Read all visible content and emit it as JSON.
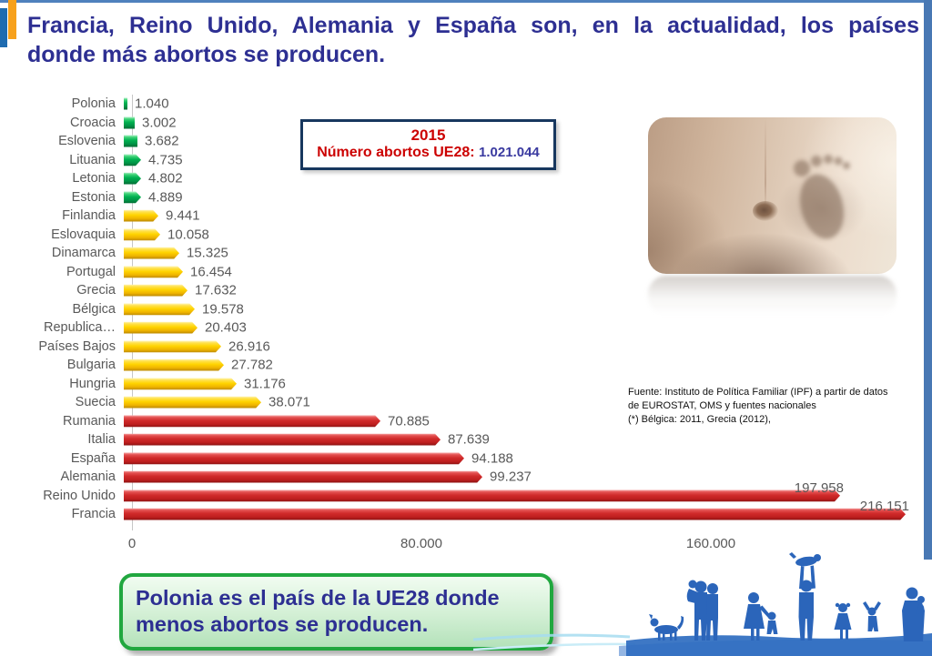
{
  "title": {
    "line1": "Francia, Reino Unido, Alemania y España son, en la actualidad, los países",
    "line2": "donde más abortos se producen."
  },
  "info_box": {
    "year": "2015",
    "label": "Número abortos UE28:",
    "value": "1.021.044"
  },
  "source_note": {
    "line1": "Fuente: Instituto de Política Familiar (IPF) a partir de datos",
    "line2": "de EUROSTAT, OMS y fuentes nacionales",
    "line3": "(*) Bélgica: 2011, Grecia (2012),"
  },
  "callout": {
    "text": "Polonia es el país de la UE28 donde menos abortos se producen."
  },
  "chart_data": {
    "type": "bar",
    "orientation": "horizontal",
    "title": "",
    "xlabel": "",
    "ylabel": "",
    "xlim": [
      0,
      220000
    ],
    "grid": false,
    "legend": false,
    "x_ticks": [
      {
        "label": "0",
        "value": 0
      },
      {
        "label": "80.000",
        "value": 80000
      },
      {
        "label": "160.000",
        "value": 160000
      }
    ],
    "bars": [
      {
        "category": "Polonia",
        "value": 1040,
        "label": "1.040",
        "color_group": "green"
      },
      {
        "category": "Croacia",
        "value": 3002,
        "label": "3.002",
        "color_group": "green"
      },
      {
        "category": "Eslovenia",
        "value": 3682,
        "label": "3.682",
        "color_group": "green"
      },
      {
        "category": "Lituania",
        "value": 4735,
        "label": "4.735",
        "color_group": "green"
      },
      {
        "category": "Letonia",
        "value": 4802,
        "label": "4.802",
        "color_group": "green"
      },
      {
        "category": "Estonia",
        "value": 4889,
        "label": "4.889",
        "color_group": "green"
      },
      {
        "category": "Finlandia",
        "value": 9441,
        "label": "9.441",
        "color_group": "yellow"
      },
      {
        "category": "Eslovaquia",
        "value": 10058,
        "label": "10.058",
        "color_group": "yellow"
      },
      {
        "category": "Dinamarca",
        "value": 15325,
        "label": "15.325",
        "color_group": "yellow"
      },
      {
        "category": "Portugal",
        "value": 16454,
        "label": "16.454",
        "color_group": "yellow"
      },
      {
        "category": "Grecia",
        "value": 17632,
        "label": "17.632",
        "color_group": "yellow"
      },
      {
        "category": "Bélgica",
        "value": 19578,
        "label": "19.578",
        "color_group": "yellow"
      },
      {
        "category": "Republica…",
        "value": 20403,
        "label": "20.403",
        "color_group": "yellow"
      },
      {
        "category": "Países Bajos",
        "value": 26916,
        "label": "26.916",
        "color_group": "yellow"
      },
      {
        "category": "Bulgaria",
        "value": 27782,
        "label": "27.782",
        "color_group": "yellow"
      },
      {
        "category": "Hungria",
        "value": 31176,
        "label": "31.176",
        "color_group": "yellow"
      },
      {
        "category": "Suecia",
        "value": 38071,
        "label": "38.071",
        "color_group": "yellow"
      },
      {
        "category": "Rumania",
        "value": 70885,
        "label": "70.885",
        "color_group": "red"
      },
      {
        "category": "Italia",
        "value": 87639,
        "label": "87.639",
        "color_group": "red"
      },
      {
        "category": "España",
        "value": 94188,
        "label": "94.188",
        "color_group": "red"
      },
      {
        "category": "Alemania",
        "value": 99237,
        "label": "99.237",
        "color_group": "red"
      },
      {
        "category": "Reino Unido",
        "value": 197958,
        "label": "197.958",
        "color_group": "red",
        "label_position": "above"
      },
      {
        "category": "Francia",
        "value": 216151,
        "label": "216.151",
        "color_group": "red",
        "label_position": "above"
      }
    ],
    "colors": {
      "green": "#00b050",
      "yellow": "#ffd400",
      "red": "#d02a2a"
    }
  },
  "colors": {
    "title_text": "#2d2f92",
    "accent_red": "#cc0000",
    "value_navy": "#3a3aa0",
    "info_border": "#17375e",
    "callout_border": "#21a73f",
    "family_blue": "#2b65ba",
    "edge_blue": "#4878b4",
    "left_bar_blue": "#1f6cb0",
    "left_bar_orange": "#f7a11c"
  }
}
